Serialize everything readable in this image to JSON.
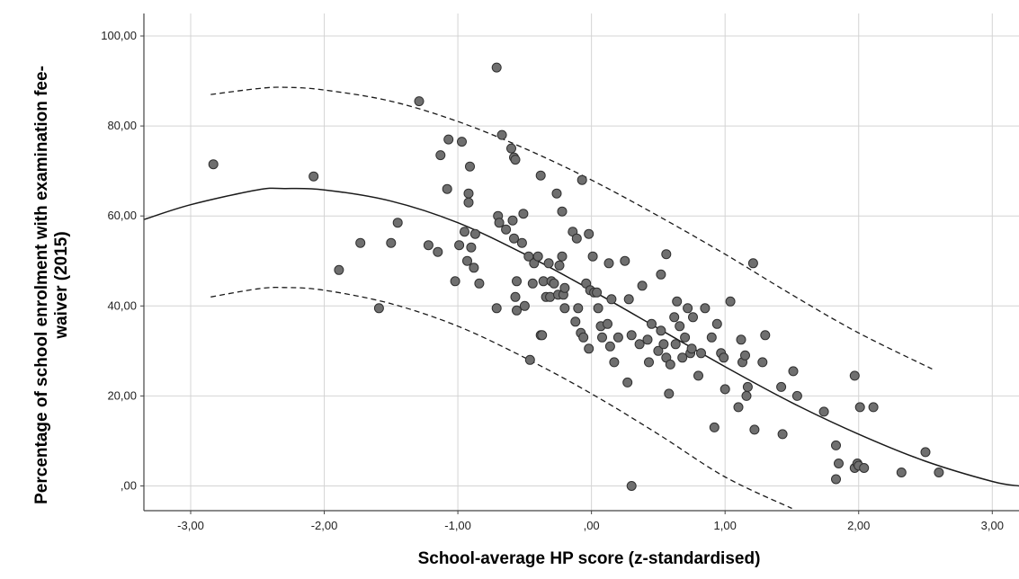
{
  "chart_data": {
    "type": "scatter",
    "xlabel": "School-average HP score (z-standardised)",
    "ylabel_lines": [
      "Percentage of school enrolment with examination fee-",
      "waiver (2015)"
    ],
    "xlim": [
      -3.35,
      3.2
    ],
    "ylim": [
      -5.5,
      105
    ],
    "x_ticks": [
      -3,
      -2,
      -1,
      0,
      1,
      2,
      3
    ],
    "x_tick_labels": [
      "-3,00",
      "-2,00",
      "-1,00",
      ",00",
      "1,00",
      "2,00",
      "3,00"
    ],
    "y_ticks": [
      0,
      20,
      40,
      60,
      80,
      100
    ],
    "y_tick_labels": [
      ",00",
      "20,00",
      "40,00",
      "60,00",
      "80,00",
      "100,00"
    ],
    "grid": true,
    "colors": {
      "point_fill": "#6f6f6f",
      "point_stroke": "#303030",
      "fit_line": "#1a1a1a",
      "grid": "#d4d4d4",
      "axis": "#444444"
    },
    "points": [
      [
        -2.83,
        71.5
      ],
      [
        -2.08,
        68.8
      ],
      [
        -1.89,
        48
      ],
      [
        -1.73,
        54
      ],
      [
        -1.59,
        39.5
      ],
      [
        -1.5,
        54
      ],
      [
        -1.45,
        58.5
      ],
      [
        -1.29,
        85.5
      ],
      [
        -1.22,
        53.5
      ],
      [
        -1.15,
        52
      ],
      [
        -1.13,
        73.5
      ],
      [
        -1.08,
        66
      ],
      [
        -1.07,
        77
      ],
      [
        -1.02,
        45.5
      ],
      [
        -0.99,
        53.5
      ],
      [
        -0.97,
        76.5
      ],
      [
        -0.95,
        56.5
      ],
      [
        -0.93,
        50
      ],
      [
        -0.92,
        65
      ],
      [
        -0.92,
        63
      ],
      [
        -0.91,
        71
      ],
      [
        -0.9,
        53
      ],
      [
        -0.88,
        48.5
      ],
      [
        -0.87,
        56
      ],
      [
        -0.84,
        45
      ],
      [
        -0.71,
        93
      ],
      [
        -0.71,
        39.5
      ],
      [
        -0.7,
        60
      ],
      [
        -0.69,
        58.5
      ],
      [
        -0.67,
        78
      ],
      [
        -0.64,
        57
      ],
      [
        -0.6,
        75
      ],
      [
        -0.59,
        59
      ],
      [
        -0.58,
        55
      ],
      [
        -0.58,
        73
      ],
      [
        -0.57,
        72.5
      ],
      [
        -0.57,
        42
      ],
      [
        -0.56,
        45.5
      ],
      [
        -0.56,
        39
      ],
      [
        -0.52,
        54
      ],
      [
        -0.51,
        60.5
      ],
      [
        -0.5,
        40
      ],
      [
        -0.47,
        51
      ],
      [
        -0.46,
        28
      ],
      [
        -0.44,
        45
      ],
      [
        -0.43,
        49.5
      ],
      [
        -0.4,
        51
      ],
      [
        -0.38,
        69
      ],
      [
        -0.38,
        33.5
      ],
      [
        -0.37,
        33.5
      ],
      [
        -0.36,
        45.5
      ],
      [
        -0.34,
        42
      ],
      [
        -0.32,
        49.5
      ],
      [
        -0.31,
        42
      ],
      [
        -0.3,
        45.5
      ],
      [
        -0.28,
        45
      ],
      [
        -0.26,
        65
      ],
      [
        -0.25,
        42.5
      ],
      [
        -0.24,
        49
      ],
      [
        -0.22,
        61
      ],
      [
        -0.22,
        51
      ],
      [
        -0.21,
        42.5
      ],
      [
        -0.2,
        39.5
      ],
      [
        -0.2,
        44
      ],
      [
        -0.14,
        56.5
      ],
      [
        -0.12,
        36.5
      ],
      [
        -0.11,
        55
      ],
      [
        -0.1,
        39.5
      ],
      [
        -0.08,
        34
      ],
      [
        -0.07,
        68
      ],
      [
        -0.06,
        33
      ],
      [
        -0.04,
        45
      ],
      [
        -0.02,
        56
      ],
      [
        -0.02,
        30.5
      ],
      [
        -0.01,
        43.5
      ],
      [
        0.01,
        51
      ],
      [
        0.02,
        43
      ],
      [
        0.04,
        43
      ],
      [
        0.05,
        39.5
      ],
      [
        0.07,
        35.5
      ],
      [
        0.08,
        33
      ],
      [
        0.12,
        36
      ],
      [
        0.13,
        49.5
      ],
      [
        0.14,
        31
      ],
      [
        0.15,
        41.5
      ],
      [
        0.17,
        27.5
      ],
      [
        0.2,
        33
      ],
      [
        0.25,
        50
      ],
      [
        0.27,
        23
      ],
      [
        0.28,
        41.5
      ],
      [
        0.3,
        33.5
      ],
      [
        0.3,
        0
      ],
      [
        0.36,
        31.5
      ],
      [
        0.38,
        44.5
      ],
      [
        0.42,
        32.5
      ],
      [
        0.43,
        27.5
      ],
      [
        0.45,
        36
      ],
      [
        0.5,
        30
      ],
      [
        0.52,
        47
      ],
      [
        0.52,
        34.5
      ],
      [
        0.54,
        31.5
      ],
      [
        0.56,
        51.5
      ],
      [
        0.56,
        28.5
      ],
      [
        0.58,
        20.5
      ],
      [
        0.59,
        27
      ],
      [
        0.62,
        37.5
      ],
      [
        0.63,
        31.5
      ],
      [
        0.64,
        41
      ],
      [
        0.66,
        35.5
      ],
      [
        0.68,
        28.5
      ],
      [
        0.7,
        33
      ],
      [
        0.72,
        39.5
      ],
      [
        0.74,
        29.5
      ],
      [
        0.75,
        30.5
      ],
      [
        0.76,
        37.5
      ],
      [
        0.8,
        24.5
      ],
      [
        0.82,
        29.5
      ],
      [
        0.85,
        39.5
      ],
      [
        0.9,
        33
      ],
      [
        0.92,
        13
      ],
      [
        0.94,
        36
      ],
      [
        0.97,
        29.5
      ],
      [
        0.99,
        28.5
      ],
      [
        1.0,
        21.5
      ],
      [
        1.04,
        41
      ],
      [
        1.1,
        17.5
      ],
      [
        1.12,
        32.5
      ],
      [
        1.13,
        27.5
      ],
      [
        1.15,
        29
      ],
      [
        1.16,
        20
      ],
      [
        1.17,
        22
      ],
      [
        1.21,
        49.5
      ],
      [
        1.22,
        12.5
      ],
      [
        1.28,
        27.5
      ],
      [
        1.3,
        33.5
      ],
      [
        1.42,
        22
      ],
      [
        1.43,
        11.5
      ],
      [
        1.51,
        25.5
      ],
      [
        1.54,
        20
      ],
      [
        1.74,
        16.5
      ],
      [
        1.83,
        9
      ],
      [
        1.83,
        1.5
      ],
      [
        1.85,
        5
      ],
      [
        1.97,
        24.5
      ],
      [
        1.97,
        4
      ],
      [
        1.99,
        5
      ],
      [
        2.0,
        4.5
      ],
      [
        2.01,
        17.5
      ],
      [
        2.04,
        4
      ],
      [
        2.11,
        17.5
      ],
      [
        2.32,
        3
      ],
      [
        2.5,
        7.5
      ],
      [
        2.6,
        3
      ]
    ],
    "fit_line": [
      [
        -3.35,
        59.2
      ],
      [
        -3.0,
        62.5
      ],
      [
        -2.5,
        65.8
      ],
      [
        -2.3,
        66.1
      ],
      [
        -2.0,
        65.8
      ],
      [
        -1.5,
        63.3
      ],
      [
        -1.0,
        58.5
      ],
      [
        -0.5,
        51.5
      ],
      [
        0.0,
        43.5
      ],
      [
        0.5,
        35
      ],
      [
        1.0,
        26.5
      ],
      [
        1.5,
        18.5
      ],
      [
        2.0,
        11.5
      ],
      [
        2.5,
        5.5
      ],
      [
        3.0,
        1
      ],
      [
        3.2,
        0
      ]
    ],
    "ci_upper": [
      [
        -2.85,
        87
      ],
      [
        -2.5,
        88.3
      ],
      [
        -2.3,
        88.6
      ],
      [
        -2.0,
        88
      ],
      [
        -1.5,
        85.5
      ],
      [
        -1.0,
        81
      ],
      [
        -0.5,
        75
      ],
      [
        0.0,
        68
      ],
      [
        0.5,
        60
      ],
      [
        1.0,
        51.5
      ],
      [
        1.5,
        42.5
      ],
      [
        2.0,
        34
      ],
      [
        2.55,
        26
      ]
    ],
    "ci_lower": [
      [
        -2.85,
        42
      ],
      [
        -2.5,
        43.8
      ],
      [
        -2.3,
        44.1
      ],
      [
        -2.0,
        43.5
      ],
      [
        -1.5,
        40.5
      ],
      [
        -1.0,
        35.5
      ],
      [
        -0.5,
        28.5
      ],
      [
        0.0,
        20.5
      ],
      [
        0.5,
        11.5
      ],
      [
        1.0,
        2
      ],
      [
        1.5,
        -5
      ]
    ]
  }
}
